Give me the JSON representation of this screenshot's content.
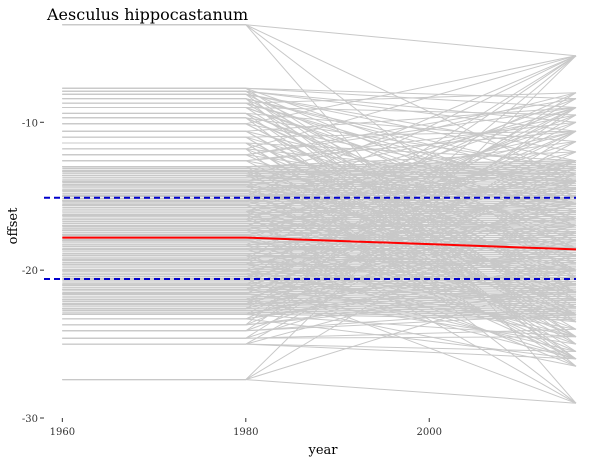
{
  "chart_data": {
    "type": "line",
    "title": "Aesculus hippocastanum",
    "xlabel": "year",
    "ylabel": "offset",
    "xlim": [
      1958,
      2016
    ],
    "ylim": [
      -30,
      -2
    ],
    "x_ticks": [
      1960,
      1980,
      2000
    ],
    "y_ticks": [
      -10,
      -20,
      -30
    ],
    "x_tick_labels": [
      "1960",
      "1980",
      "2000"
    ],
    "y_tick_labels": [
      "-10",
      "-20",
      "-30"
    ],
    "grid": false,
    "background_series": {
      "color": "#c8c8c8",
      "x": [
        1960,
        1980,
        2016
      ],
      "y_1960_1980_levels": [
        -3.4,
        -7.7,
        -7.9,
        -8.1,
        -8.4,
        -8.7,
        -9.0,
        -9.4,
        -9.7,
        -10.1,
        -10.6,
        -11.0,
        -11.4,
        -11.8,
        -12.2,
        -12.6,
        -13.0,
        -13.3,
        -13.6,
        -14.0,
        -14.3,
        -14.6,
        -15.0,
        -15.3,
        -15.6,
        -16.0,
        -16.3,
        -16.6,
        -17.0,
        -17.3,
        -17.6,
        -18.0,
        -18.3,
        -18.6,
        -19.0,
        -19.3,
        -19.6,
        -20.0,
        -20.3,
        -20.6,
        -21.0,
        -21.3,
        -21.6,
        -22.0,
        -22.3,
        -22.6,
        -23.0,
        -23.3,
        -23.7,
        -24.1,
        -24.6,
        -25.0,
        -27.4
      ],
      "y_2016_endpoints": [
        -5.5,
        -8.0,
        -8.4,
        -9.0,
        -9.5,
        -10.0,
        -10.6,
        -11.3,
        -12.0,
        -12.6,
        -13.1,
        -13.5,
        -14.0,
        -14.5,
        -15.0,
        -15.5,
        -16.0,
        -16.5,
        -17.0,
        -17.5,
        -18.0,
        -18.5,
        -19.0,
        -19.5,
        -20.0,
        -20.5,
        -21.0,
        -21.5,
        -22.0,
        -22.5,
        -23.0,
        -23.5,
        -24.0,
        -24.5,
        -25.0,
        -25.5,
        -26.0,
        -26.5,
        -29.0
      ]
    },
    "series": [
      {
        "x": [
          1960,
          1980,
          2016
        ],
        "y": [
          -17.8,
          -17.8,
          -18.6
        ],
        "color": "#ff0000",
        "style": "solid"
      },
      {
        "x": [
          1958,
          2016
        ],
        "y": [
          -15.1,
          -15.1
        ],
        "color": "#0000cc",
        "style": "dashed"
      },
      {
        "x": [
          1958,
          2016
        ],
        "y": [
          -20.6,
          -20.6
        ],
        "color": "#0000cc",
        "style": "dashed"
      }
    ]
  }
}
